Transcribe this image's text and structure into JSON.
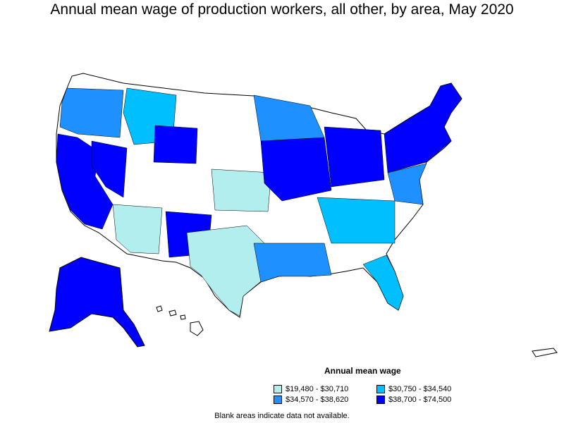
{
  "title": "Annual mean wage of production workers, all other, by area, May 2020",
  "legend": {
    "title": "Annual mean wage",
    "items": [
      {
        "label": "$19,480 - $30,710",
        "color": "#b2eeee"
      },
      {
        "label": "$30,750 - $34,540",
        "color": "#00bfff"
      },
      {
        "label": "$34,570 - $38,620",
        "color": "#1e90ff"
      },
      {
        "label": "$38,700 - $74,500",
        "color": "#0000ff"
      }
    ]
  },
  "note": "Blank areas indicate data not available.",
  "colors": {
    "outline": "#000000",
    "blank": "#ffffff"
  }
}
